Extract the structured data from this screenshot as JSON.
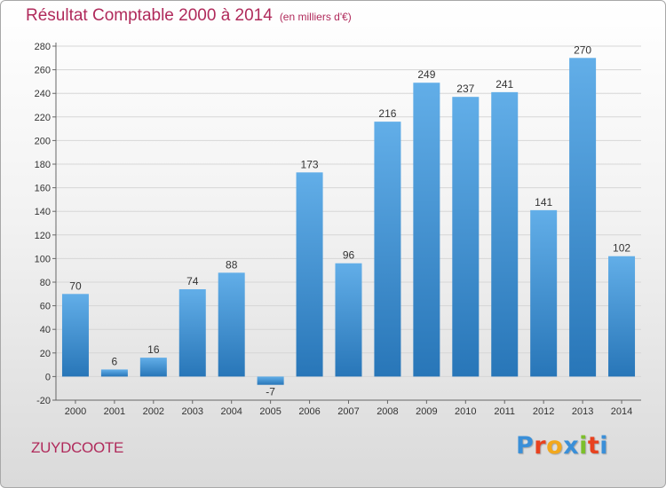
{
  "header": {
    "title": "Résultat Comptable 2000 à 2014",
    "subtitle": "(en milliers d'€)"
  },
  "footer": {
    "commune": "ZUYDCOOTE",
    "logo": "Proxiti",
    "logo_colors": [
      "#3a8fd8",
      "#e8421f",
      "#f2a81d",
      "#3a8fd8",
      "#7cbf2a",
      "#e8421f",
      "#3a8fd8"
    ]
  },
  "colors": {
    "title": "#b02a5b",
    "bar_light": "#62aee8",
    "bar_dark": "#2876b8",
    "grid": "#d6d6d6"
  },
  "chart_data": {
    "type": "bar",
    "title": "Résultat Comptable 2000 à 2014",
    "subtitle": "(en milliers d'€)",
    "categories": [
      "2000",
      "2001",
      "2002",
      "2003",
      "2004",
      "2005",
      "2006",
      "2007",
      "2008",
      "2009",
      "2010",
      "2011",
      "2012",
      "2013",
      "2014"
    ],
    "values": [
      70,
      6,
      16,
      74,
      88,
      -7,
      173,
      96,
      216,
      249,
      237,
      241,
      141,
      270,
      102
    ],
    "data_labels": [
      "70",
      "6",
      "16",
      "74",
      "88",
      "-7",
      "173",
      "96",
      "216",
      "249",
      "237",
      "241",
      "141",
      "270",
      "102"
    ],
    "ylim": [
      -20,
      280
    ],
    "yticks": [
      -20,
      0,
      20,
      40,
      60,
      80,
      100,
      120,
      140,
      160,
      180,
      200,
      220,
      240,
      260,
      280
    ],
    "grid": true,
    "legend": "none"
  }
}
